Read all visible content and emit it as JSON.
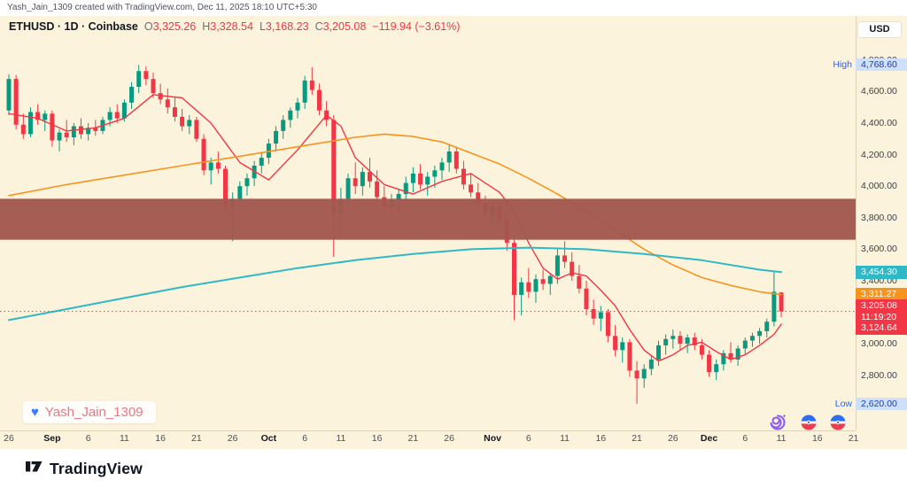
{
  "page": {
    "attribution": "Yash_Jain_1309 created with TradingView.com, Dec 11, 2025 18:10 UTC+5:30",
    "currency_button": "USD"
  },
  "legend": {
    "symbol_line": "ETHUSD · 1D · Coinbase",
    "ohlc": [
      {
        "k": "O",
        "v": "3,325.26"
      },
      {
        "k": "H",
        "v": "3,328.54"
      },
      {
        "k": "L",
        "v": "3,168.23"
      },
      {
        "k": "C",
        "v": "3,205.08"
      }
    ],
    "change": "−119.94 (−3.61%)"
  },
  "watermark": {
    "name": "Yash_Jain_1309"
  },
  "footer": {
    "brand": "TradingView"
  },
  "chart_data": {
    "type": "candlestick",
    "title": "ETHUSD 1D Coinbase",
    "last_price": 3205.08,
    "colors": {
      "up": "#089981",
      "down": "#f23645",
      "fast_ma": "#f23645",
      "medium_ma": "#f7941d",
      "slow_ma": "#2fb9c6",
      "band": "#a2584f",
      "background": "#fcf3dd"
    },
    "band": {
      "top_price": 3920,
      "bottom_price": 3660
    },
    "badges": {
      "high": {
        "label": "High",
        "value": "4,768.60",
        "price": 4768.6
      },
      "low": {
        "label": "Low",
        "value": "2,620.00",
        "price": 2620
      },
      "slow_ma": {
        "value": "3,454.30",
        "price": 3454.3
      },
      "medium_ma": {
        "value": "3,311.27",
        "price": 3311.27
      },
      "fast_ma": {
        "value": "3,124.64",
        "price": 3100
      },
      "last": {
        "value": "3,205.08",
        "countdown": "11:19:20",
        "price": 3205.08
      }
    },
    "price_ticks": [
      {
        "label": "4,800.00",
        "price": 4800
      },
      {
        "label": "4,600.00",
        "price": 4600
      },
      {
        "label": "4,400.00",
        "price": 4400
      },
      {
        "label": "4,200.00",
        "price": 4200
      },
      {
        "label": "4,000.00",
        "price": 4000
      },
      {
        "label": "3,800.00",
        "price": 3800
      },
      {
        "label": "3,600.00",
        "price": 3600
      },
      {
        "label": "3,400.00",
        "price": 3400
      },
      {
        "label": "3,000.00",
        "price": 3000
      },
      {
        "label": "2,800.00",
        "price": 2800
      }
    ],
    "time_ticks": [
      {
        "label": "26",
        "i": 0,
        "major": false
      },
      {
        "label": "Sep",
        "i": 6,
        "major": true
      },
      {
        "label": "6",
        "i": 11,
        "major": false
      },
      {
        "label": "11",
        "i": 16,
        "major": false
      },
      {
        "label": "16",
        "i": 21,
        "major": false
      },
      {
        "label": "21",
        "i": 26,
        "major": false
      },
      {
        "label": "26",
        "i": 31,
        "major": false
      },
      {
        "label": "Oct",
        "i": 36,
        "major": true
      },
      {
        "label": "6",
        "i": 41,
        "major": false
      },
      {
        "label": "11",
        "i": 46,
        "major": false
      },
      {
        "label": "16",
        "i": 51,
        "major": false
      },
      {
        "label": "21",
        "i": 56,
        "major": false
      },
      {
        "label": "26",
        "i": 61,
        "major": false
      },
      {
        "label": "Nov",
        "i": 67,
        "major": true
      },
      {
        "label": "6",
        "i": 72,
        "major": false
      },
      {
        "label": "11",
        "i": 77,
        "major": false
      },
      {
        "label": "16",
        "i": 82,
        "major": false
      },
      {
        "label": "21",
        "i": 87,
        "major": false
      },
      {
        "label": "26",
        "i": 92,
        "major": false
      },
      {
        "label": "Dec",
        "i": 97,
        "major": true
      },
      {
        "label": "6",
        "i": 102,
        "major": false
      },
      {
        "label": "11",
        "i": 107,
        "major": false
      },
      {
        "label": "16",
        "i": 112,
        "major": false
      },
      {
        "label": "21",
        "i": 117,
        "major": false
      }
    ],
    "candles": [
      [
        4480,
        4710,
        4450,
        4680
      ],
      [
        4680,
        4705,
        4360,
        4390
      ],
      [
        4390,
        4460,
        4300,
        4330
      ],
      [
        4330,
        4500,
        4310,
        4470
      ],
      [
        4470,
        4520,
        4390,
        4420
      ],
      [
        4420,
        4480,
        4350,
        4460
      ],
      [
        4460,
        4480,
        4250,
        4290
      ],
      [
        4290,
        4360,
        4220,
        4340
      ],
      [
        4340,
        4420,
        4280,
        4310
      ],
      [
        4310,
        4400,
        4260,
        4380
      ],
      [
        4380,
        4430,
        4300,
        4330
      ],
      [
        4330,
        4400,
        4290,
        4370
      ],
      [
        4370,
        4420,
        4320,
        4350
      ],
      [
        4350,
        4440,
        4330,
        4420
      ],
      [
        4420,
        4500,
        4380,
        4470
      ],
      [
        4470,
        4520,
        4400,
        4430
      ],
      [
        4430,
        4550,
        4410,
        4530
      ],
      [
        4530,
        4660,
        4490,
        4630
      ],
      [
        4630,
        4768.6,
        4590,
        4730
      ],
      [
        4730,
        4760,
        4640,
        4680
      ],
      [
        4680,
        4720,
        4560,
        4590
      ],
      [
        4590,
        4650,
        4520,
        4550
      ],
      [
        4550,
        4620,
        4460,
        4500
      ],
      [
        4500,
        4560,
        4410,
        4440
      ],
      [
        4440,
        4490,
        4350,
        4380
      ],
      [
        4380,
        4450,
        4330,
        4420
      ],
      [
        4420,
        4440,
        4280,
        4300
      ],
      [
        4300,
        4330,
        4070,
        4100
      ],
      [
        4100,
        4180,
        4010,
        4150
      ],
      [
        4150,
        4220,
        4080,
        4110
      ],
      [
        4110,
        4130,
        3830,
        3870
      ],
      [
        3870,
        3960,
        3650,
        3920
      ],
      [
        3920,
        4030,
        3880,
        4000
      ],
      [
        4000,
        4080,
        3940,
        4050
      ],
      [
        4050,
        4160,
        4000,
        4130
      ],
      [
        4130,
        4210,
        4080,
        4180
      ],
      [
        4180,
        4300,
        4140,
        4270
      ],
      [
        4270,
        4380,
        4220,
        4350
      ],
      [
        4350,
        4450,
        4300,
        4420
      ],
      [
        4420,
        4500,
        4370,
        4480
      ],
      [
        4480,
        4560,
        4430,
        4530
      ],
      [
        4530,
        4700,
        4490,
        4670
      ],
      [
        4670,
        4755,
        4580,
        4610
      ],
      [
        4610,
        4650,
        4450,
        4480
      ],
      [
        4480,
        4540,
        4380,
        4420
      ],
      [
        4420,
        4450,
        3550,
        3820
      ],
      [
        3820,
        3990,
        3680,
        3920
      ],
      [
        3920,
        4080,
        3870,
        4050
      ],
      [
        4050,
        4150,
        3950,
        4000
      ],
      [
        4000,
        4120,
        3940,
        4090
      ],
      [
        4090,
        4180,
        3990,
        4030
      ],
      [
        4030,
        4100,
        3890,
        3930
      ],
      [
        3930,
        4000,
        3820,
        3870
      ],
      [
        3870,
        3950,
        3810,
        3910
      ],
      [
        3910,
        3980,
        3840,
        3950
      ],
      [
        3950,
        4060,
        3900,
        4020
      ],
      [
        4020,
        4120,
        3960,
        4080
      ],
      [
        4080,
        4140,
        3980,
        4010
      ],
      [
        4010,
        4090,
        3940,
        4060
      ],
      [
        4060,
        4130,
        3990,
        4100
      ],
      [
        4100,
        4180,
        4040,
        4150
      ],
      [
        4150,
        4260,
        4090,
        4220
      ],
      [
        4220,
        4250,
        4080,
        4110
      ],
      [
        4110,
        4160,
        3980,
        4010
      ],
      [
        4010,
        4080,
        3930,
        3960
      ],
      [
        3960,
        4020,
        3850,
        3890
      ],
      [
        3890,
        3940,
        3780,
        3820
      ],
      [
        3820,
        3900,
        3750,
        3870
      ],
      [
        3870,
        3910,
        3760,
        3790
      ],
      [
        3790,
        3830,
        3590,
        3640
      ],
      [
        3640,
        3660,
        3150,
        3310
      ],
      [
        3310,
        3420,
        3180,
        3390
      ],
      [
        3390,
        3480,
        3290,
        3330
      ],
      [
        3330,
        3440,
        3260,
        3410
      ],
      [
        3410,
        3470,
        3340,
        3380
      ],
      [
        3380,
        3450,
        3310,
        3430
      ],
      [
        3430,
        3600,
        3380,
        3560
      ],
      [
        3560,
        3650,
        3480,
        3520
      ],
      [
        3520,
        3580,
        3400,
        3430
      ],
      [
        3430,
        3500,
        3320,
        3350
      ],
      [
        3350,
        3400,
        3180,
        3220
      ],
      [
        3220,
        3280,
        3120,
        3160
      ],
      [
        3160,
        3240,
        3080,
        3200
      ],
      [
        3200,
        3220,
        3010,
        3050
      ],
      [
        3050,
        3120,
        2920,
        2960
      ],
      [
        2960,
        3040,
        2880,
        3010
      ],
      [
        3010,
        3030,
        2790,
        2830
      ],
      [
        2830,
        2890,
        2620,
        2780
      ],
      [
        2780,
        2870,
        2720,
        2840
      ],
      [
        2840,
        2930,
        2800,
        2900
      ],
      [
        2900,
        3020,
        2860,
        2990
      ],
      [
        2990,
        3060,
        2930,
        3030
      ],
      [
        3030,
        3090,
        2970,
        3050
      ],
      [
        3050,
        3080,
        2960,
        3000
      ],
      [
        3000,
        3060,
        2940,
        3040
      ],
      [
        3040,
        3070,
        2960,
        2990
      ],
      [
        2990,
        3030,
        2900,
        2930
      ],
      [
        2930,
        2960,
        2790,
        2820
      ],
      [
        2820,
        2900,
        2770,
        2870
      ],
      [
        2870,
        2960,
        2830,
        2940
      ],
      [
        2940,
        3010,
        2880,
        2900
      ],
      [
        2900,
        2990,
        2860,
        2970
      ],
      [
        2970,
        3040,
        2930,
        3020
      ],
      [
        3020,
        3070,
        2980,
        3050
      ],
      [
        3050,
        3100,
        3000,
        3080
      ],
      [
        3080,
        3160,
        3040,
        3140
      ],
      [
        3140,
        3465,
        3110,
        3330
      ],
      [
        3325.26,
        3328.54,
        3168.23,
        3205.08
      ]
    ],
    "ma_lines": [
      {
        "name": "fast-ma",
        "color": "#f23645",
        "width": 1.4,
        "points": [
          [
            0,
            4460
          ],
          [
            4,
            4430
          ],
          [
            8,
            4350
          ],
          [
            12,
            4370
          ],
          [
            16,
            4430
          ],
          [
            20,
            4580
          ],
          [
            24,
            4560
          ],
          [
            28,
            4400
          ],
          [
            32,
            4150
          ],
          [
            36,
            4040
          ],
          [
            40,
            4230
          ],
          [
            44,
            4450
          ],
          [
            46,
            4380
          ],
          [
            48,
            4180
          ],
          [
            52,
            4010
          ],
          [
            56,
            3950
          ],
          [
            60,
            4030
          ],
          [
            64,
            4080
          ],
          [
            68,
            3960
          ],
          [
            70,
            3840
          ],
          [
            72,
            3640
          ],
          [
            74,
            3480
          ],
          [
            76,
            3410
          ],
          [
            78,
            3450
          ],
          [
            80,
            3430
          ],
          [
            82,
            3340
          ],
          [
            84,
            3240
          ],
          [
            86,
            3090
          ],
          [
            88,
            2960
          ],
          [
            90,
            2890
          ],
          [
            92,
            2930
          ],
          [
            94,
            2990
          ],
          [
            96,
            3010
          ],
          [
            98,
            2950
          ],
          [
            100,
            2900
          ],
          [
            102,
            2930
          ],
          [
            104,
            2990
          ],
          [
            106,
            3060
          ],
          [
            107,
            3124.64
          ]
        ]
      },
      {
        "name": "medium-ma",
        "color": "#f7941d",
        "width": 1.6,
        "points": [
          [
            0,
            3940
          ],
          [
            8,
            4010
          ],
          [
            16,
            4070
          ],
          [
            24,
            4130
          ],
          [
            32,
            4190
          ],
          [
            40,
            4250
          ],
          [
            48,
            4310
          ],
          [
            52,
            4330
          ],
          [
            56,
            4315
          ],
          [
            60,
            4280
          ],
          [
            64,
            4210
          ],
          [
            68,
            4140
          ],
          [
            72,
            4050
          ],
          [
            76,
            3950
          ],
          [
            80,
            3840
          ],
          [
            84,
            3720
          ],
          [
            88,
            3600
          ],
          [
            92,
            3500
          ],
          [
            96,
            3420
          ],
          [
            100,
            3370
          ],
          [
            104,
            3330
          ],
          [
            107,
            3311.27
          ]
        ]
      },
      {
        "name": "slow-ma",
        "color": "#2fb9c6",
        "width": 2,
        "points": [
          [
            0,
            3150
          ],
          [
            8,
            3220
          ],
          [
            16,
            3290
          ],
          [
            24,
            3360
          ],
          [
            32,
            3420
          ],
          [
            40,
            3480
          ],
          [
            48,
            3530
          ],
          [
            56,
            3570
          ],
          [
            64,
            3600
          ],
          [
            72,
            3610
          ],
          [
            80,
            3600
          ],
          [
            88,
            3570
          ],
          [
            96,
            3530
          ],
          [
            100,
            3500
          ],
          [
            104,
            3470
          ],
          [
            107,
            3454.3
          ]
        ]
      }
    ]
  }
}
